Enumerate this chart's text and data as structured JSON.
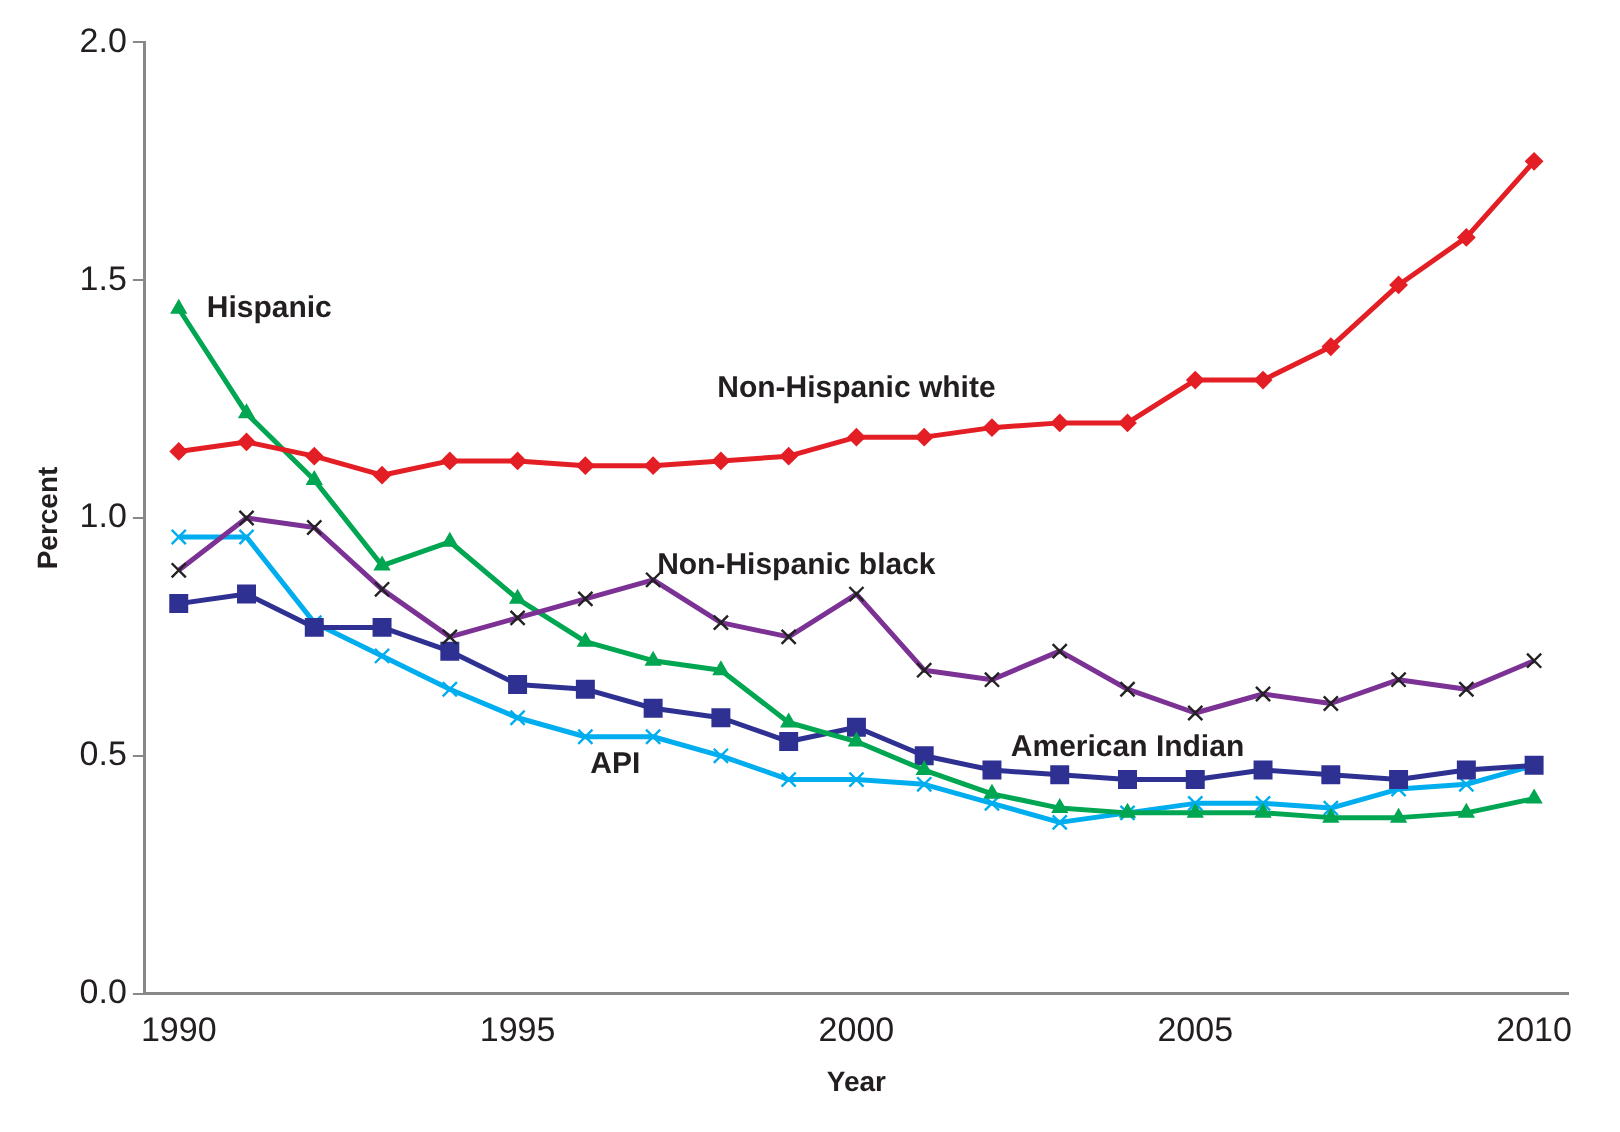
{
  "chart_data": {
    "type": "line",
    "xlabel": "Year",
    "ylabel": "Percent",
    "x": [
      1990,
      1991,
      1992,
      1993,
      1994,
      1995,
      1996,
      1997,
      1998,
      1999,
      2000,
      2001,
      2002,
      2003,
      2004,
      2005,
      2006,
      2007,
      2008,
      2009,
      2010
    ],
    "xlim": [
      1989.5,
      2010.5
    ],
    "xticks": [
      1990,
      1995,
      2000,
      2005,
      2010
    ],
    "ylim": [
      0,
      2
    ],
    "yticks": [
      {
        "value": 0,
        "label": "0.0"
      },
      {
        "value": 0.5,
        "label": "0.5"
      },
      {
        "value": 1,
        "label": "1.0"
      },
      {
        "value": 1.5,
        "label": "1.5"
      },
      {
        "value": 2,
        "label": "2.0"
      }
    ],
    "grid": false,
    "legend": false,
    "series": [
      {
        "name": "Non-Hispanic white",
        "color": "#e31e24",
        "marker": "diamond",
        "values": [
          1.14,
          1.16,
          1.13,
          1.09,
          1.12,
          1.12,
          1.11,
          1.11,
          1.12,
          1.13,
          1.17,
          1.17,
          1.19,
          1.2,
          1.2,
          1.29,
          1.29,
          1.36,
          1.49,
          1.59,
          1.75
        ]
      },
      {
        "name": "Non-Hispanic black",
        "color": "#7b3294",
        "marker": "cross",
        "values": [
          0.89,
          1.0,
          0.98,
          0.85,
          0.75,
          0.79,
          0.83,
          0.87,
          0.78,
          0.75,
          0.84,
          0.68,
          0.66,
          0.72,
          0.64,
          0.59,
          0.63,
          0.61,
          0.66,
          0.64,
          0.7
        ]
      },
      {
        "name": "Hispanic",
        "color": "#00a651",
        "marker": "triangle",
        "values": [
          1.44,
          1.22,
          1.08,
          0.9,
          0.95,
          0.83,
          0.74,
          0.7,
          0.68,
          0.57,
          0.53,
          0.47,
          0.42,
          0.39,
          0.38,
          0.38,
          0.38,
          0.37,
          0.37,
          0.38,
          0.41
        ]
      },
      {
        "name": "American Indian",
        "color": "#2e3192",
        "marker": "square",
        "values": [
          0.82,
          0.84,
          0.77,
          0.77,
          0.72,
          0.65,
          0.64,
          0.6,
          0.58,
          0.53,
          0.56,
          0.5,
          0.47,
          0.46,
          0.45,
          0.45,
          0.47,
          0.46,
          0.45,
          0.47,
          0.48
        ]
      },
      {
        "name": "API",
        "color": "#00aeef",
        "marker": "cross",
        "values": [
          0.96,
          0.96,
          0.78,
          0.71,
          0.64,
          0.58,
          0.54,
          0.54,
          0.5,
          0.45,
          0.45,
          0.44,
          0.4,
          0.36,
          0.38,
          0.4,
          0.4,
          0.39,
          0.43,
          0.44,
          0.48
        ]
      }
    ]
  }
}
